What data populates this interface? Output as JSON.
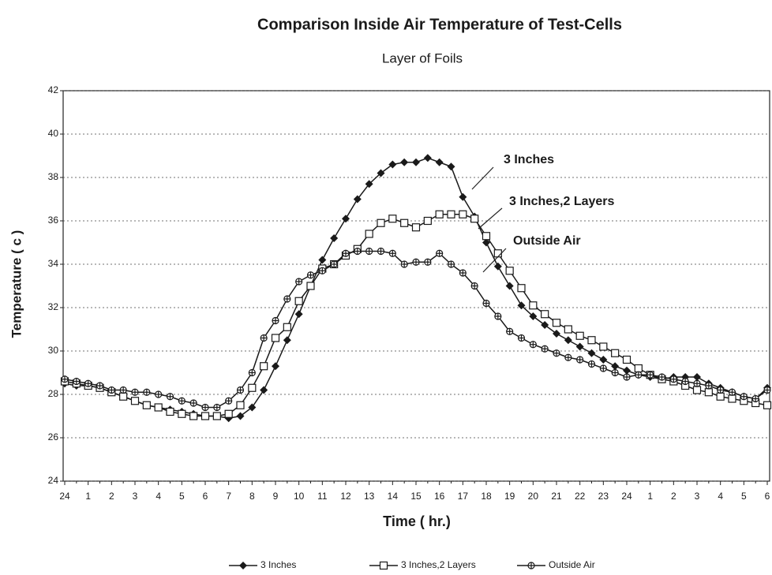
{
  "chart_data": {
    "type": "line",
    "title": "Comparison Inside Air Temperature of Test-Cells",
    "subtitle": "Layer of Foils",
    "y_label": "Temperature ( c )",
    "x_label": "Time ( hr.)",
    "categories": [
      "24",
      null,
      "1",
      null,
      "2",
      null,
      "3",
      null,
      "4",
      null,
      "5",
      null,
      "6",
      null,
      "7",
      null,
      "8",
      null,
      "9",
      null,
      "10",
      null,
      "11",
      null,
      "12",
      null,
      "13",
      null,
      "14",
      null,
      "15",
      null,
      "16",
      null,
      "17",
      null,
      "18",
      null,
      "19",
      null,
      "20",
      null,
      "21",
      null,
      "22",
      null,
      "23",
      null,
      "24",
      null,
      "1",
      null,
      "2",
      null,
      "3",
      null,
      "4",
      null,
      "5",
      null,
      "6"
    ],
    "series": [
      {
        "name": "3 Inches",
        "color": "#1a1a1a",
        "marker": "diamond",
        "values": [
          28.5,
          28.4,
          28.4,
          28.3,
          28.1,
          27.9,
          27.7,
          27.5,
          27.4,
          27.3,
          27.2,
          27.1,
          27.0,
          27.0,
          26.9,
          27.0,
          27.4,
          28.2,
          29.3,
          30.5,
          31.7,
          33.0,
          34.2,
          35.2,
          36.1,
          37.0,
          37.7,
          38.2,
          38.6,
          38.7,
          38.7,
          38.9,
          38.7,
          38.5,
          37.1,
          36.2,
          35.0,
          33.9,
          33.0,
          32.1,
          31.6,
          31.2,
          30.8,
          30.5,
          30.2,
          29.9,
          29.6,
          29.3,
          29.1,
          28.9,
          28.8,
          28.7,
          28.8,
          28.8,
          28.8,
          28.5,
          28.3,
          28.1,
          27.9,
          27.8,
          28.3
        ]
      },
      {
        "name": "3 Inches,2 Layers",
        "color": "#1a1a1a",
        "marker": "square",
        "values": [
          28.6,
          28.5,
          28.4,
          28.3,
          28.1,
          27.9,
          27.7,
          27.5,
          27.4,
          27.2,
          27.1,
          27.0,
          27.0,
          27.0,
          27.1,
          27.5,
          28.3,
          29.3,
          30.6,
          31.1,
          32.3,
          33.0,
          33.8,
          34.0,
          34.4,
          34.7,
          35.4,
          35.9,
          36.1,
          35.9,
          35.7,
          36.0,
          36.3,
          36.3,
          36.3,
          36.1,
          35.3,
          34.5,
          33.7,
          32.9,
          32.1,
          31.7,
          31.3,
          31.0,
          30.7,
          30.5,
          30.2,
          29.9,
          29.6,
          29.2,
          28.9,
          28.7,
          28.6,
          28.4,
          28.2,
          28.1,
          27.9,
          27.8,
          27.7,
          27.6,
          27.5
        ]
      },
      {
        "name": "Outside Air",
        "color": "#1a1a1a",
        "marker": "plus-circle",
        "values": [
          28.7,
          28.6,
          28.5,
          28.4,
          28.2,
          28.2,
          28.1,
          28.1,
          28.0,
          27.9,
          27.7,
          27.6,
          27.4,
          27.4,
          27.7,
          28.2,
          29.0,
          30.6,
          31.4,
          32.4,
          33.2,
          33.5,
          33.7,
          34.0,
          34.5,
          34.6,
          34.6,
          34.6,
          34.5,
          34.0,
          34.1,
          34.1,
          34.5,
          34.0,
          33.6,
          33.0,
          32.2,
          31.6,
          30.9,
          30.6,
          30.3,
          30.1,
          29.9,
          29.7,
          29.6,
          29.4,
          29.2,
          29.0,
          28.8,
          28.9,
          28.9,
          28.8,
          28.7,
          28.6,
          28.5,
          28.4,
          28.2,
          28.1,
          27.9,
          27.8,
          28.2
        ]
      }
    ],
    "annotations": [
      {
        "text": "3 Inches"
      },
      {
        "text": "3 Inches,2 Layers"
      },
      {
        "text": "Outside Air"
      }
    ],
    "ylim": [
      24,
      42
    ],
    "yticks": [
      24,
      26,
      28,
      30,
      32,
      34,
      36,
      38,
      40,
      42
    ],
    "grid": true
  }
}
